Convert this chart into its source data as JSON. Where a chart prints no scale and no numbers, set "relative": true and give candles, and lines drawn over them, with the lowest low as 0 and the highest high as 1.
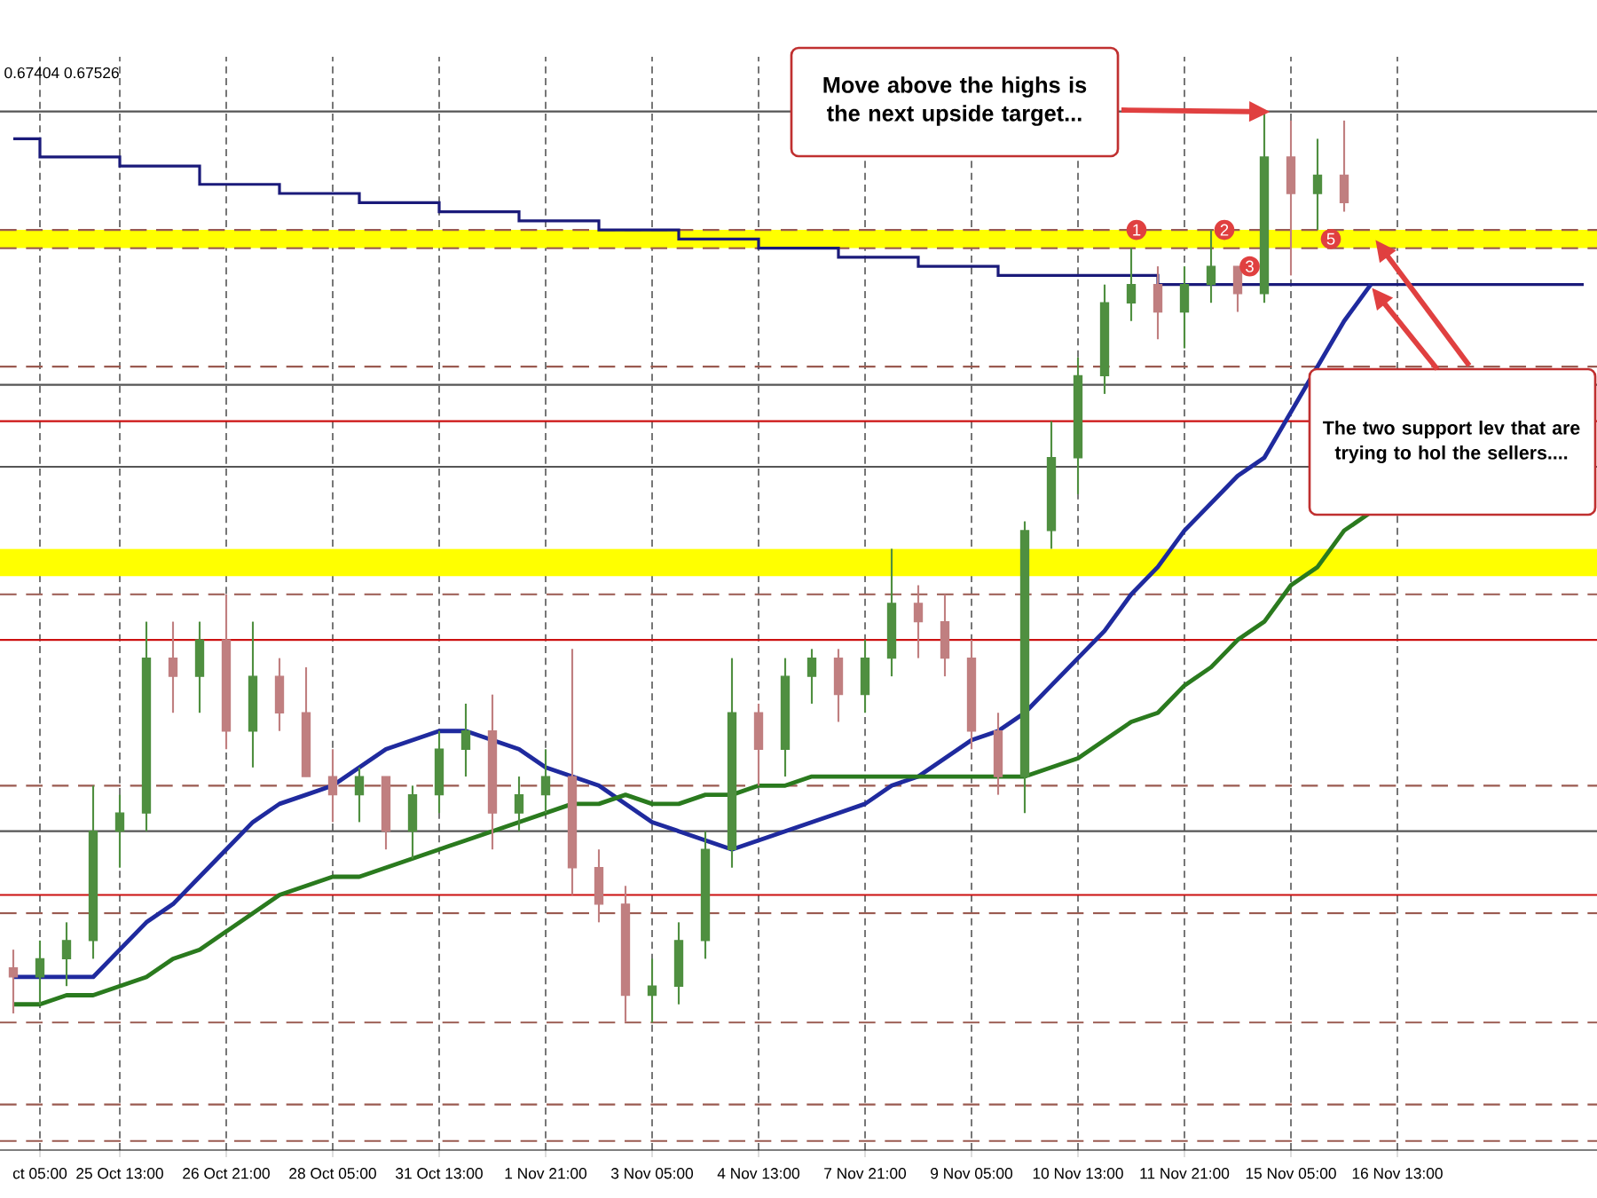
{
  "chart_data": {
    "type": "candlestick",
    "relative": true,
    "grid": "x",
    "categories": [
      null,
      "ct 05:00",
      null,
      null,
      "25 Oct 13:00",
      null,
      null,
      null,
      "26 Oct 21:00",
      null,
      null,
      null,
      "28 Oct 05:00",
      null,
      null,
      null,
      "31 Oct 13:00",
      null,
      null,
      null,
      "1 Nov 21:00",
      null,
      null,
      null,
      "3 Nov 05:00",
      null,
      null,
      null,
      "4 Nov 13:00",
      null,
      null,
      null,
      "7 Nov 21:00",
      null,
      null,
      null,
      "9 Nov 05:00",
      null,
      null,
      null,
      "10 Nov 13:00",
      null,
      null,
      null,
      "11 Nov 21:00",
      null,
      null,
      null,
      "15 Nov 05:00",
      null,
      null,
      null,
      "16 Nov 13:00",
      null,
      null,
      null,
      null,
      null,
      null,
      null
    ],
    "ohlc": [
      [
        0.06,
        0.08,
        0.01,
        0.05
      ],
      [
        0.05,
        0.09,
        0.02,
        0.07
      ],
      [
        0.07,
        0.11,
        0.04,
        0.09
      ],
      [
        0.09,
        0.26,
        0.07,
        0.21
      ],
      [
        0.21,
        0.25,
        0.17,
        0.23
      ],
      [
        0.23,
        0.44,
        0.21,
        0.4
      ],
      [
        0.4,
        0.44,
        0.34,
        0.38
      ],
      [
        0.38,
        0.44,
        0.34,
        0.42
      ],
      [
        0.42,
        0.47,
        0.3,
        0.32
      ],
      [
        0.32,
        0.44,
        0.28,
        0.38
      ],
      [
        0.38,
        0.4,
        0.32,
        0.34
      ],
      [
        0.34,
        0.39,
        0.27,
        0.27
      ],
      [
        0.27,
        0.3,
        0.22,
        0.25
      ],
      [
        0.25,
        0.28,
        0.22,
        0.27
      ],
      [
        0.27,
        0.27,
        0.19,
        0.21
      ],
      [
        0.21,
        0.26,
        0.18,
        0.25
      ],
      [
        0.25,
        0.32,
        0.23,
        0.3
      ],
      [
        0.3,
        0.35,
        0.27,
        0.32
      ],
      [
        0.32,
        0.36,
        0.19,
        0.23
      ],
      [
        0.23,
        0.27,
        0.21,
        0.25
      ],
      [
        0.25,
        0.3,
        0.23,
        0.27
      ],
      [
        0.27,
        0.41,
        0.14,
        0.17
      ],
      [
        0.17,
        0.19,
        0.11,
        0.13
      ],
      [
        0.13,
        0.15,
        0.0,
        0.03
      ],
      [
        0.03,
        0.07,
        0.0,
        0.04
      ],
      [
        0.04,
        0.11,
        0.02,
        0.09
      ],
      [
        0.09,
        0.21,
        0.07,
        0.19
      ],
      [
        0.19,
        0.4,
        0.17,
        0.34
      ],
      [
        0.34,
        0.35,
        0.26,
        0.3
      ],
      [
        0.3,
        0.4,
        0.27,
        0.38
      ],
      [
        0.38,
        0.41,
        0.35,
        0.4
      ],
      [
        0.4,
        0.41,
        0.33,
        0.36
      ],
      [
        0.36,
        0.42,
        0.34,
        0.4
      ],
      [
        0.4,
        0.52,
        0.38,
        0.46
      ],
      [
        0.46,
        0.48,
        0.4,
        0.44
      ],
      [
        0.44,
        0.47,
        0.38,
        0.4
      ],
      [
        0.4,
        0.42,
        0.3,
        0.32
      ],
      [
        0.32,
        0.34,
        0.25,
        0.27
      ],
      [
        0.27,
        0.55,
        0.23,
        0.54
      ],
      [
        0.54,
        0.66,
        0.52,
        0.62
      ],
      [
        0.62,
        0.73,
        0.58,
        0.71
      ],
      [
        0.71,
        0.81,
        0.69,
        0.79
      ],
      [
        0.79,
        0.85,
        0.77,
        0.81
      ],
      [
        0.81,
        0.83,
        0.75,
        0.78
      ],
      [
        0.78,
        0.83,
        0.74,
        0.81
      ],
      [
        0.81,
        0.87,
        0.79,
        0.83
      ],
      [
        0.83,
        0.83,
        0.78,
        0.8
      ],
      [
        0.8,
        1.0,
        0.79,
        0.95
      ],
      [
        0.95,
        0.99,
        0.82,
        0.91
      ],
      [
        0.91,
        0.97,
        0.87,
        0.93
      ],
      [
        0.93,
        0.99,
        0.89,
        0.9
      ],
      null,
      null,
      null,
      null,
      null,
      null,
      null,
      null,
      null
    ],
    "series": [
      {
        "type": "step",
        "color": "#1a1a7a",
        "values": [
          0.97,
          0.95,
          0.95,
          0.95,
          0.94,
          0.94,
          0.94,
          0.92,
          0.92,
          0.92,
          0.91,
          0.91,
          0.91,
          0.9,
          0.9,
          0.9,
          0.89,
          0.89,
          0.89,
          0.88,
          0.88,
          0.88,
          0.87,
          0.87,
          0.87,
          0.86,
          0.86,
          0.86,
          0.85,
          0.85,
          0.85,
          0.84,
          0.84,
          0.84,
          0.83,
          0.83,
          0.83,
          0.82,
          0.82,
          0.82,
          0.82,
          0.82,
          0.82,
          0.81,
          0.81,
          0.81,
          0.81,
          0.81,
          0.81,
          0.81,
          0.81,
          0.81,
          0.81,
          0.81,
          0.81,
          0.81,
          0.81,
          0.81,
          0.81,
          0.81
        ]
      },
      {
        "type": "line",
        "color": "#1f2a9e",
        "values": [
          0.05,
          0.05,
          0.05,
          0.05,
          0.08,
          0.11,
          0.13,
          0.16,
          0.19,
          0.22,
          0.24,
          0.25,
          0.26,
          0.28,
          0.3,
          0.31,
          0.32,
          0.32,
          0.31,
          0.3,
          0.28,
          0.27,
          0.26,
          0.24,
          0.22,
          0.21,
          0.2,
          0.19,
          0.2,
          0.21,
          0.22,
          0.23,
          0.24,
          0.26,
          0.27,
          0.29,
          0.31,
          0.32,
          0.34,
          0.37,
          0.4,
          0.43,
          0.47,
          0.5,
          0.54,
          0.57,
          0.6,
          0.62,
          0.67,
          0.72,
          0.77,
          0.81,
          null,
          null,
          null,
          null,
          null,
          null,
          null,
          null
        ]
      },
      {
        "type": "line",
        "color": "#2a7a1e",
        "values": [
          0.02,
          0.02,
          0.03,
          0.03,
          0.04,
          0.05,
          0.07,
          0.08,
          0.1,
          0.12,
          0.14,
          0.15,
          0.16,
          0.16,
          0.17,
          0.18,
          0.19,
          0.2,
          0.21,
          0.22,
          0.23,
          0.24,
          0.24,
          0.25,
          0.24,
          0.24,
          0.25,
          0.25,
          0.26,
          0.26,
          0.27,
          0.27,
          0.27,
          0.27,
          0.27,
          0.27,
          0.27,
          0.27,
          0.27,
          0.28,
          0.29,
          0.31,
          0.33,
          0.34,
          0.37,
          0.39,
          0.42,
          0.44,
          0.48,
          0.5,
          0.54,
          0.56,
          null,
          null,
          null,
          null,
          null,
          null,
          null,
          null
        ]
      }
    ],
    "bands": [
      {
        "axis": "y",
        "from": 0.85,
        "to": 0.87,
        "color": "#ffff00"
      },
      {
        "axis": "y",
        "from": 0.49,
        "to": 0.52,
        "color": "#ffff00"
      }
    ],
    "ref_lines": [
      {
        "axis": "y",
        "value": 0.66,
        "color": "#cc1111",
        "line_style": "solid"
      },
      {
        "axis": "y",
        "value": 0.42,
        "color": "#cc1111",
        "line_style": "solid"
      },
      {
        "axis": "y",
        "value": 0.14,
        "color": "#cc1111",
        "line_style": "solid"
      },
      {
        "axis": "y",
        "value": 0.87,
        "color": "#9a5a50",
        "line_style": "dashed"
      },
      {
        "axis": "y",
        "value": 0.85,
        "color": "#9a5a50",
        "line_style": "dashed"
      },
      {
        "axis": "y",
        "value": 0.72,
        "color": "#9a5a50",
        "line_style": "dashed"
      },
      {
        "axis": "y",
        "value": 0.47,
        "color": "#9a5a50",
        "line_style": "dashed"
      },
      {
        "axis": "y",
        "value": 0.26,
        "color": "#9a5a50",
        "line_style": "dashed"
      },
      {
        "axis": "y",
        "value": 0.12,
        "color": "#9a5a50",
        "line_style": "dashed"
      },
      {
        "axis": "y",
        "value": 0.0,
        "color": "#9a5a50",
        "line_style": "dashed"
      },
      {
        "axis": "y",
        "value": -0.09,
        "color": "#9a5a50",
        "line_style": "dashed"
      },
      {
        "axis": "y",
        "value": -0.13,
        "color": "#9a5a50",
        "line_style": "dashed"
      },
      {
        "axis": "y",
        "value": 1.0,
        "color": "#555555",
        "line_style": "solid"
      },
      {
        "axis": "y",
        "value": 0.7,
        "color": "#555555",
        "line_style": "solid"
      },
      {
        "axis": "y",
        "value": 0.61,
        "color": "#555555",
        "line_style": "solid"
      },
      {
        "axis": "y",
        "value": 0.21,
        "color": "#555555",
        "line_style": "solid"
      }
    ],
    "annotations": [
      "0.67404 0.67526",
      "Move above the highs is the next upside target...",
      "The two support lev that are trying to hol the sellers....",
      {
        "text": "1",
        "y": 0.87
      },
      {
        "text": "2",
        "y": 0.87
      },
      {
        "text": "3",
        "y": 0.83
      },
      {
        "text": "5",
        "y": 0.86
      }
    ]
  }
}
